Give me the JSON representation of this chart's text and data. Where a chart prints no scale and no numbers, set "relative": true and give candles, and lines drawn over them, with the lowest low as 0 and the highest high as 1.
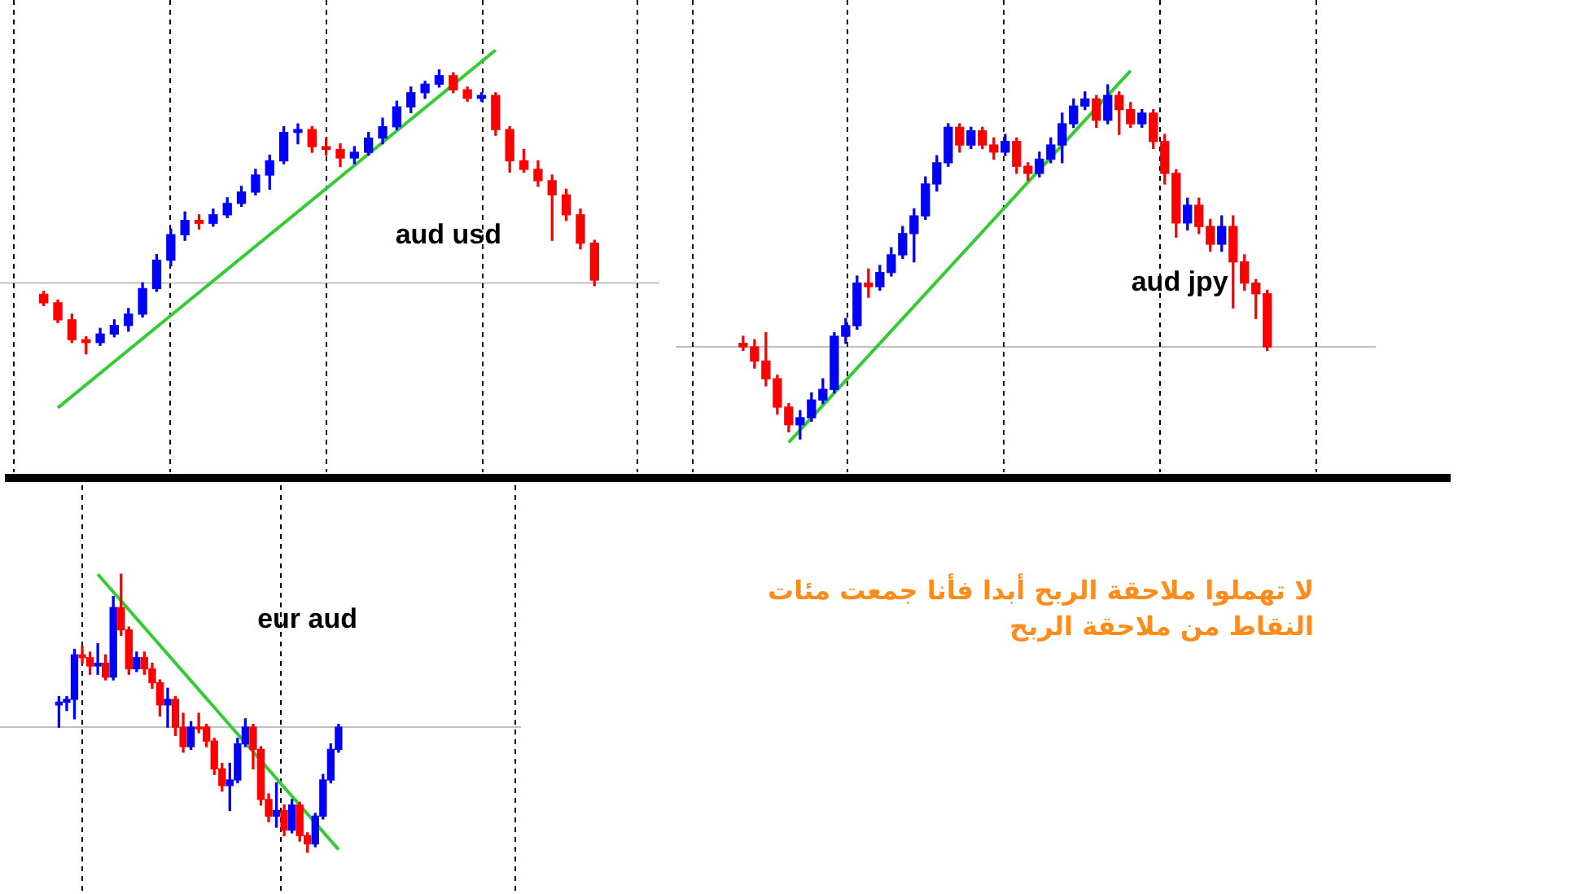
{
  "chart_data": [
    {
      "type": "candlestick",
      "title": "aud usd",
      "relative": true,
      "grid": "x",
      "categories": [
        null,
        null,
        null,
        null,
        null,
        null,
        null,
        null,
        null,
        null,
        null,
        null,
        null,
        null,
        null,
        null,
        null,
        null,
        null,
        null,
        null,
        null,
        null,
        null,
        null,
        null,
        null,
        null,
        null,
        null,
        null,
        null,
        null,
        null,
        null,
        null,
        null,
        null,
        null,
        null
      ],
      "ohlc": [
        [
          0.21,
          0.22,
          0.17,
          0.18
        ],
        [
          0.18,
          0.19,
          0.11,
          0.12
        ],
        [
          0.12,
          0.14,
          0.04,
          0.05
        ],
        [
          0.05,
          0.06,
          0.0,
          0.04
        ],
        [
          0.04,
          0.09,
          0.03,
          0.07
        ],
        [
          0.07,
          0.12,
          0.06,
          0.1
        ],
        [
          0.1,
          0.16,
          0.08,
          0.14
        ],
        [
          0.14,
          0.25,
          0.13,
          0.23
        ],
        [
          0.23,
          0.35,
          0.22,
          0.33
        ],
        [
          0.33,
          0.44,
          0.31,
          0.42
        ],
        [
          0.42,
          0.5,
          0.4,
          0.47
        ],
        [
          0.47,
          0.49,
          0.44,
          0.46
        ],
        [
          0.46,
          0.51,
          0.45,
          0.49
        ],
        [
          0.49,
          0.55,
          0.48,
          0.53
        ],
        [
          0.53,
          0.59,
          0.52,
          0.57
        ],
        [
          0.57,
          0.65,
          0.56,
          0.63
        ],
        [
          0.63,
          0.7,
          0.58,
          0.68
        ],
        [
          0.68,
          0.8,
          0.67,
          0.78
        ],
        [
          0.78,
          0.81,
          0.74,
          0.79
        ],
        [
          0.79,
          0.8,
          0.71,
          0.73
        ],
        [
          0.73,
          0.76,
          0.7,
          0.72
        ],
        [
          0.72,
          0.74,
          0.66,
          0.69
        ],
        [
          0.69,
          0.73,
          0.67,
          0.71
        ],
        [
          0.71,
          0.78,
          0.7,
          0.76
        ],
        [
          0.76,
          0.83,
          0.74,
          0.8
        ],
        [
          0.8,
          0.89,
          0.79,
          0.87
        ],
        [
          0.87,
          0.94,
          0.85,
          0.92
        ],
        [
          0.92,
          0.96,
          0.9,
          0.95
        ],
        [
          0.95,
          1.0,
          0.94,
          0.98
        ],
        [
          0.98,
          0.99,
          0.92,
          0.93
        ],
        [
          0.93,
          0.94,
          0.89,
          0.9
        ],
        [
          0.9,
          0.92,
          0.89,
          0.91
        ],
        [
          0.91,
          0.92,
          0.77,
          0.79
        ],
        [
          0.79,
          0.8,
          0.64,
          0.68
        ],
        [
          0.68,
          0.72,
          0.64,
          0.65
        ],
        [
          0.65,
          0.68,
          0.59,
          0.61
        ],
        [
          0.61,
          0.63,
          0.4,
          0.56
        ],
        [
          0.56,
          0.58,
          0.47,
          0.49
        ],
        [
          0.49,
          0.51,
          0.37,
          0.39
        ],
        [
          0.39,
          0.4,
          0.24,
          0.26
        ]
      ],
      "colors": [
        "#ff0000",
        "#ff0000",
        "#ff0000",
        "#ff0000",
        "#0000ff",
        "#0000ff",
        "#0000ff",
        "#0000ff",
        "#0000ff",
        "#0000ff",
        "#0000ff",
        "#ff0000",
        "#0000ff",
        "#0000ff",
        "#0000ff",
        "#0000ff",
        "#0000ff",
        "#0000ff",
        "#0000ff",
        "#ff0000",
        "#ff0000",
        "#ff0000",
        "#0000ff",
        "#0000ff",
        "#0000ff",
        "#0000ff",
        "#0000ff",
        "#0000ff",
        "#0000ff",
        "#ff0000",
        "#ff0000",
        "#0000ff",
        "#ff0000",
        "#ff0000",
        "#ff0000",
        "#ff0000",
        "#ff0000",
        "#ff0000",
        "#ff0000",
        "#ff0000"
      ],
      "series": [
        {
          "type": "line",
          "color": "#33cc33",
          "values": [
            null,
            -0.19,
            null,
            null,
            null,
            null,
            null,
            null,
            null,
            null,
            null,
            null,
            null,
            null,
            null,
            null,
            null,
            null,
            null,
            null,
            null,
            null,
            null,
            null,
            null,
            null,
            null,
            null,
            null,
            null,
            null,
            null,
            1.07,
            null,
            null,
            null,
            null,
            null,
            null,
            null
          ]
        }
      ],
      "ref_lines": [
        {
          "axis": "y",
          "value": 0.25,
          "color": "#c0c0c0"
        }
      ]
    },
    {
      "type": "candlestick",
      "title": "aud jpy",
      "relative": true,
      "grid": "x",
      "categories": [
        null,
        null,
        null,
        null,
        null,
        null,
        null,
        null,
        null,
        null,
        null,
        null,
        null,
        null,
        null,
        null,
        null,
        null,
        null,
        null,
        null,
        null,
        null,
        null,
        null,
        null,
        null,
        null,
        null,
        null,
        null,
        null,
        null,
        null,
        null,
        null,
        null,
        null,
        null,
        null,
        null,
        null,
        null,
        null,
        null,
        null,
        null
      ],
      "ohlc": [
        [
          0.27,
          0.29,
          0.25,
          0.26
        ],
        [
          0.26,
          0.28,
          0.2,
          0.22
        ],
        [
          0.22,
          0.3,
          0.15,
          0.17
        ],
        [
          0.17,
          0.18,
          0.07,
          0.09
        ],
        [
          0.09,
          0.1,
          0.02,
          0.04
        ],
        [
          0.04,
          0.08,
          0.0,
          0.06
        ],
        [
          0.06,
          0.13,
          0.05,
          0.11
        ],
        [
          0.11,
          0.17,
          0.1,
          0.14
        ],
        [
          0.14,
          0.3,
          0.13,
          0.29
        ],
        [
          0.29,
          0.34,
          0.27,
          0.32
        ],
        [
          0.32,
          0.46,
          0.31,
          0.44
        ],
        [
          0.44,
          0.48,
          0.4,
          0.43
        ],
        [
          0.43,
          0.49,
          0.42,
          0.47
        ],
        [
          0.47,
          0.54,
          0.46,
          0.52
        ],
        [
          0.52,
          0.6,
          0.51,
          0.58
        ],
        [
          0.58,
          0.65,
          0.5,
          0.63
        ],
        [
          0.63,
          0.74,
          0.62,
          0.72
        ],
        [
          0.72,
          0.8,
          0.7,
          0.78
        ],
        [
          0.78,
          0.89,
          0.77,
          0.88
        ],
        [
          0.88,
          0.89,
          0.81,
          0.83
        ],
        [
          0.83,
          0.88,
          0.82,
          0.87
        ],
        [
          0.87,
          0.88,
          0.82,
          0.83
        ],
        [
          0.83,
          0.85,
          0.79,
          0.81
        ],
        [
          0.81,
          0.86,
          0.8,
          0.84
        ],
        [
          0.84,
          0.85,
          0.75,
          0.77
        ],
        [
          0.77,
          0.78,
          0.73,
          0.75
        ],
        [
          0.75,
          0.81,
          0.74,
          0.79
        ],
        [
          0.79,
          0.85,
          0.78,
          0.83
        ],
        [
          0.83,
          0.92,
          0.78,
          0.89
        ],
        [
          0.89,
          0.96,
          0.88,
          0.94
        ],
        [
          0.94,
          0.98,
          0.93,
          0.96
        ],
        [
          0.96,
          0.97,
          0.88,
          0.9
        ],
        [
          0.9,
          1.0,
          0.89,
          0.97
        ],
        [
          0.97,
          0.98,
          0.86,
          0.93
        ],
        [
          0.93,
          0.95,
          0.88,
          0.89
        ],
        [
          0.89,
          0.93,
          0.88,
          0.92
        ],
        [
          0.92,
          0.93,
          0.82,
          0.84
        ],
        [
          0.84,
          0.86,
          0.72,
          0.75
        ],
        [
          0.75,
          0.76,
          0.57,
          0.61
        ],
        [
          0.61,
          0.68,
          0.59,
          0.66
        ],
        [
          0.66,
          0.68,
          0.58,
          0.6
        ],
        [
          0.6,
          0.62,
          0.53,
          0.55
        ],
        [
          0.55,
          0.63,
          0.53,
          0.6
        ],
        [
          0.6,
          0.63,
          0.37,
          0.5
        ],
        [
          0.5,
          0.52,
          0.42,
          0.44
        ],
        [
          0.44,
          0.45,
          0.34,
          0.41
        ],
        [
          0.41,
          0.42,
          0.25,
          0.26
        ]
      ],
      "colors": [
        "#ff0000",
        "#ff0000",
        "#ff0000",
        "#ff0000",
        "#ff0000",
        "#0000ff",
        "#0000ff",
        "#0000ff",
        "#0000ff",
        "#0000ff",
        "#0000ff",
        "#ff0000",
        "#0000ff",
        "#0000ff",
        "#0000ff",
        "#0000ff",
        "#0000ff",
        "#0000ff",
        "#0000ff",
        "#ff0000",
        "#0000ff",
        "#ff0000",
        "#ff0000",
        "#0000ff",
        "#ff0000",
        "#ff0000",
        "#0000ff",
        "#0000ff",
        "#0000ff",
        "#0000ff",
        "#0000ff",
        "#ff0000",
        "#0000ff",
        "#ff0000",
        "#ff0000",
        "#0000ff",
        "#ff0000",
        "#ff0000",
        "#ff0000",
        "#0000ff",
        "#ff0000",
        "#ff0000",
        "#0000ff",
        "#ff0000",
        "#ff0000",
        "#ff0000",
        "#ff0000"
      ],
      "series": [
        {
          "type": "line",
          "color": "#33cc33",
          "values": [
            null,
            null,
            null,
            null,
            -0.01,
            null,
            null,
            null,
            null,
            null,
            null,
            null,
            null,
            null,
            null,
            null,
            null,
            null,
            null,
            null,
            null,
            null,
            null,
            null,
            null,
            null,
            null,
            null,
            null,
            null,
            null,
            null,
            null,
            null,
            1.04,
            null,
            null,
            null,
            null,
            null,
            null,
            null,
            null,
            null,
            null,
            null,
            null
          ]
        }
      ],
      "ref_lines": [
        {
          "axis": "y",
          "value": 0.26,
          "color": "#c0c0c0"
        }
      ]
    },
    {
      "type": "candlestick",
      "title": "eur aud",
      "relative": true,
      "grid": "x",
      "categories": [
        null,
        null,
        null,
        null,
        null,
        null,
        null,
        null,
        null,
        null,
        null,
        null,
        null,
        null,
        null,
        null,
        null,
        null,
        null,
        null,
        null,
        null,
        null,
        null,
        null,
        null,
        null,
        null,
        null,
        null,
        null,
        null,
        null,
        null,
        null,
        null,
        null
      ],
      "ohlc": [
        [
          0.53,
          0.56,
          0.45,
          0.54
        ],
        [
          0.54,
          0.56,
          0.51,
          0.55
        ],
        [
          0.55,
          0.73,
          0.48,
          0.71
        ],
        [
          0.71,
          0.74,
          0.68,
          0.7
        ],
        [
          0.7,
          0.72,
          0.64,
          0.67
        ],
        [
          0.67,
          0.75,
          0.64,
          0.68
        ],
        [
          0.68,
          0.71,
          0.62,
          0.63
        ],
        [
          0.63,
          0.92,
          0.62,
          0.88
        ],
        [
          0.88,
          1.0,
          0.78,
          0.8
        ],
        [
          0.8,
          0.81,
          0.64,
          0.66
        ],
        [
          0.66,
          0.72,
          0.65,
          0.7
        ],
        [
          0.7,
          0.72,
          0.64,
          0.66
        ],
        [
          0.66,
          0.68,
          0.59,
          0.61
        ],
        [
          0.61,
          0.62,
          0.49,
          0.53
        ],
        [
          0.53,
          0.59,
          0.45,
          0.55
        ],
        [
          0.55,
          0.56,
          0.42,
          0.45
        ],
        [
          0.45,
          0.5,
          0.36,
          0.38
        ],
        [
          0.38,
          0.47,
          0.37,
          0.45
        ],
        [
          0.45,
          0.5,
          0.43,
          0.45
        ],
        [
          0.45,
          0.46,
          0.38,
          0.4
        ],
        [
          0.4,
          0.41,
          0.28,
          0.3
        ],
        [
          0.3,
          0.32,
          0.22,
          0.24
        ],
        [
          0.24,
          0.32,
          0.15,
          0.26
        ],
        [
          0.26,
          0.41,
          0.25,
          0.39
        ],
        [
          0.39,
          0.48,
          0.38,
          0.45
        ],
        [
          0.45,
          0.46,
          0.3,
          0.37
        ],
        [
          0.37,
          0.38,
          0.17,
          0.19
        ],
        [
          0.19,
          0.21,
          0.11,
          0.13
        ],
        [
          0.13,
          0.25,
          0.09,
          0.15
        ],
        [
          0.15,
          0.17,
          0.06,
          0.08
        ],
        [
          0.08,
          0.19,
          0.07,
          0.17
        ],
        [
          0.17,
          0.18,
          0.04,
          0.06
        ],
        [
          0.06,
          0.07,
          0.0,
          0.03
        ],
        [
          0.03,
          0.14,
          0.02,
          0.13
        ],
        [
          0.13,
          0.28,
          0.12,
          0.26
        ],
        [
          0.26,
          0.39,
          0.25,
          0.37
        ],
        [
          0.37,
          0.46,
          0.36,
          0.45
        ]
      ],
      "colors": [
        "#0000ff",
        "#0000ff",
        "#0000ff",
        "#ff0000",
        "#ff0000",
        "#0000ff",
        "#ff0000",
        "#0000ff",
        "#ff0000",
        "#ff0000",
        "#0000ff",
        "#ff0000",
        "#ff0000",
        "#ff0000",
        "#0000ff",
        "#ff0000",
        "#ff0000",
        "#0000ff",
        "#ff0000",
        "#ff0000",
        "#ff0000",
        "#ff0000",
        "#0000ff",
        "#0000ff",
        "#0000ff",
        "#ff0000",
        "#ff0000",
        "#ff0000",
        "#0000ff",
        "#ff0000",
        "#0000ff",
        "#ff0000",
        "#ff0000",
        "#0000ff",
        "#0000ff",
        "#0000ff",
        "#0000ff"
      ],
      "series": [
        {
          "type": "line",
          "color": "#33cc33",
          "values": [
            null,
            null,
            null,
            null,
            null,
            1.0,
            null,
            null,
            null,
            null,
            null,
            null,
            null,
            null,
            null,
            null,
            null,
            null,
            null,
            null,
            null,
            null,
            null,
            null,
            null,
            null,
            null,
            null,
            null,
            null,
            null,
            null,
            null,
            null,
            null,
            null,
            0.01
          ]
        }
      ],
      "ref_lines": [
        {
          "axis": "y",
          "value": 0.45,
          "color": "#c0c0c0"
        }
      ],
      "annotations": [
        "لا تهملوا ملاحقة الربح أبدا فأنا جمعت مئات النقاط من ملاحقة الربح"
      ]
    }
  ]
}
